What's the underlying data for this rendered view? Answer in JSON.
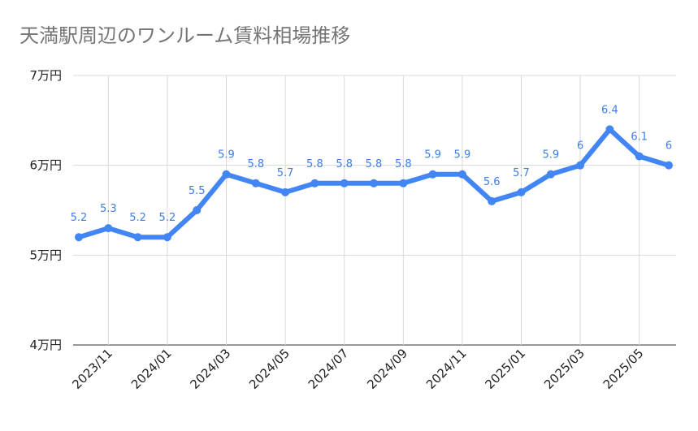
{
  "chart_data": {
    "type": "line",
    "title": "天満駅周辺のワンルーム賃料相場推移",
    "xlabel": "",
    "ylabel": "",
    "ylim": [
      4,
      7
    ],
    "yticks": [
      {
        "value": 4,
        "label": "4万円"
      },
      {
        "value": 5,
        "label": "5万円"
      },
      {
        "value": 6,
        "label": "6万円"
      },
      {
        "value": 7,
        "label": "7万円"
      }
    ],
    "xtick_labels": [
      "2023/11",
      "2024/01",
      "2024/03",
      "2024/05",
      "2024/07",
      "2024/09",
      "2024/11",
      "2025/01",
      "2025/03",
      "2025/05"
    ],
    "xtick_indices": [
      1,
      3,
      5,
      7,
      9,
      11,
      13,
      15,
      17,
      19
    ],
    "categories": [
      "2023/10",
      "2023/11",
      "2023/12",
      "2024/01",
      "2024/02",
      "2024/03",
      "2024/04",
      "2024/05",
      "2024/06",
      "2024/07",
      "2024/08",
      "2024/09",
      "2024/10",
      "2024/11",
      "2024/12",
      "2025/01",
      "2025/02",
      "2025/03",
      "2025/04",
      "2025/05",
      "2025/06"
    ],
    "series": [
      {
        "name": "ワンルーム賃料",
        "values": [
          5.2,
          5.3,
          5.2,
          5.2,
          5.5,
          5.9,
          5.8,
          5.7,
          5.8,
          5.8,
          5.8,
          5.8,
          5.9,
          5.9,
          5.6,
          5.7,
          5.9,
          6,
          6.4,
          6.1,
          6
        ],
        "labels": [
          "5.2",
          "5.3",
          "5.2",
          "5.2",
          "5.5",
          "5.9",
          "5.8",
          "5.7",
          "5.8",
          "5.8",
          "5.8",
          "5.8",
          "5.9",
          "5.9",
          "5.6",
          "5.7",
          "5.9",
          "6",
          "6.4",
          "6.1",
          "6"
        ],
        "color": "#4285f4"
      }
    ],
    "grid": true,
    "legend": "none",
    "colors": {
      "line": "#4285f4",
      "label": "#3d7ee8",
      "grid": "#d9d9d9",
      "title": "#757575"
    }
  }
}
